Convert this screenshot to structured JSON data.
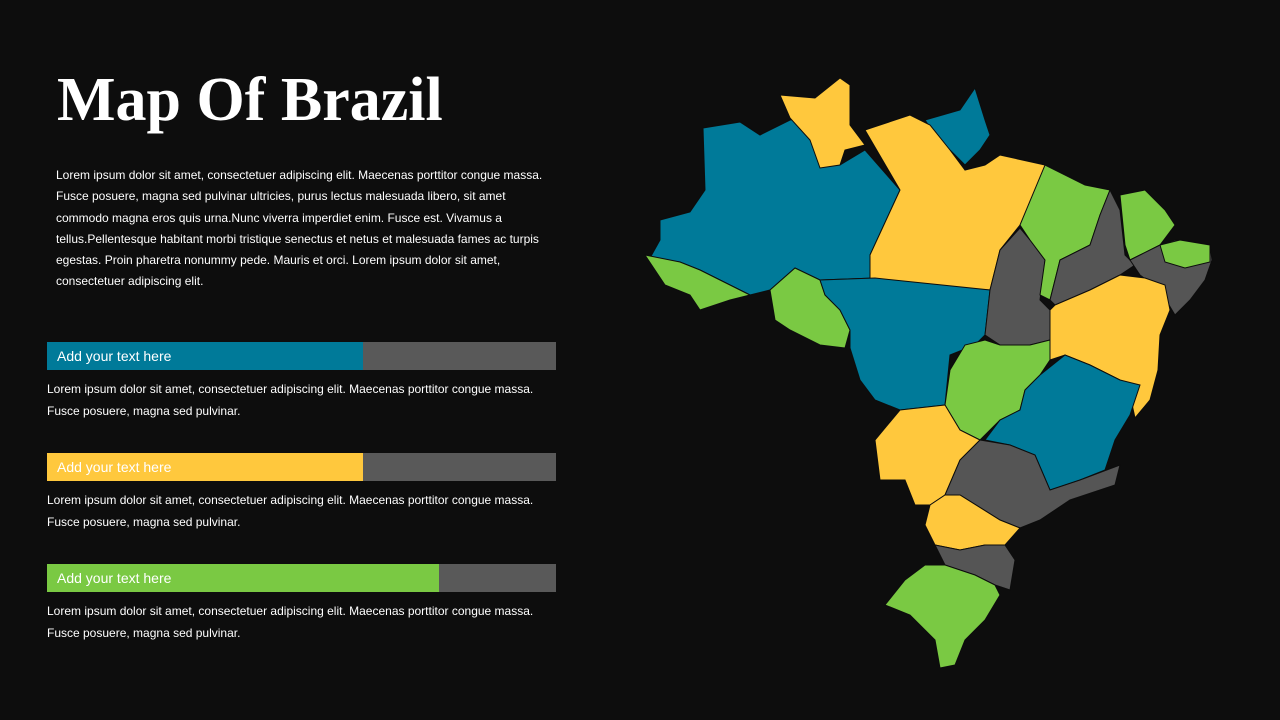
{
  "title": "Map Of Brazil",
  "intro": "Lorem ipsum dolor sit amet, consectetuer adipiscing elit. Maecenas porttitor congue massa. Fusce posuere, magna sed pulvinar ultricies, purus lectus malesuada libero, sit amet commodo magna eros quis urna.Nunc viverra imperdiet enim. Fusce est. Vivamus a tellus.Pellentesque habitant morbi tristique senectus et netus et malesuada fames ac turpis egestas. Proin pharetra nonummy pede. Mauris et orci. Lorem ipsum dolor sit amet, consectetuer adipiscing elit.",
  "range": [
    0,
    100
  ],
  "items": [
    {
      "label": "Add your text here",
      "value": 62,
      "color": "#007a99",
      "text": "Lorem ipsum dolor sit amet, consectetuer adipiscing elit. Maecenas porttitor congue massa. Fusce posuere, magna sed pulvinar."
    },
    {
      "label": "Add your text here",
      "value": 62,
      "color": "#ffc83d",
      "text": "Lorem ipsum dolor sit amet, consectetuer adipiscing elit. Maecenas porttitor congue massa. Fusce posuere, magna sed pulvinar."
    },
    {
      "label": "Add your text here",
      "value": 77,
      "color": "#7ac943",
      "text": "Lorem ipsum dolor sit amet, consectetuer adipiscing elit. Maecenas porttitor congue massa. Fusce posuere, magna sed pulvinar."
    }
  ]
}
